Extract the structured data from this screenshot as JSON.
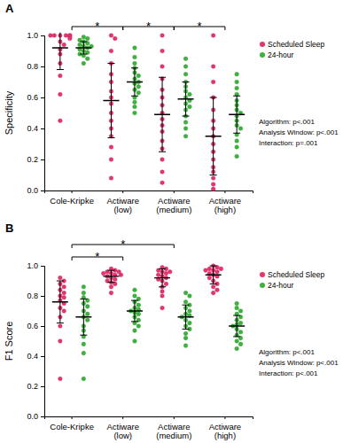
{
  "chart_data": [
    {
      "type": "scatter",
      "title": "A",
      "y_label": "Specificity",
      "categories": [
        "Cole-Kripke",
        "Actiware (low)",
        "Actiware (medium)",
        "Actiware (high)"
      ],
      "ylim": [
        0,
        1
      ],
      "yticks": [
        {
          "value": 0,
          "label": "0.0"
        },
        {
          "value": 0.2,
          "label": "0.2"
        },
        {
          "value": 0.4,
          "label": "0.4"
        },
        {
          "value": 0.6,
          "label": "0.6"
        },
        {
          "value": 0.8,
          "label": "0.8"
        },
        {
          "value": 1,
          "label": "1.0"
        }
      ],
      "grid": false,
      "legend": "right",
      "series": [
        {
          "name": "Scheduled Sleep",
          "color": "#e8336e",
          "marker": "circle",
          "values": [
            [
              1,
              1,
              1,
              1,
              1,
              1,
              0.99,
              0.98,
              0.96,
              0.94,
              0.91,
              0.88,
              0.82,
              0.74,
              0.62,
              0.45
            ],
            [
              1,
              0.98,
              0.9,
              0.82,
              0.75,
              0.7,
              0.64,
              0.6,
              0.56,
              0.5,
              0.45,
              0.4,
              0.35,
              0.28,
              0.2,
              0.08
            ],
            [
              1,
              0.9,
              0.8,
              0.72,
              0.65,
              0.6,
              0.55,
              0.5,
              0.46,
              0.42,
              0.38,
              0.32,
              0.27,
              0.2,
              0.12,
              0.05
            ],
            [
              1,
              0.8,
              0.7,
              0.6,
              0.52,
              0.45,
              0.4,
              0.35,
              0.3,
              0.25,
              0.2,
              0.15,
              0.12,
              0.08,
              0.04,
              0.01
            ]
          ],
          "mean": [
            0.92,
            0.58,
            0.49,
            0.35
          ],
          "sd": [
            0.14,
            0.24,
            0.24,
            0.25
          ]
        },
        {
          "name": "24-hour",
          "color": "#3cb33c",
          "marker": "circle",
          "values": [
            [
              0.99,
              0.98,
              0.97,
              0.96,
              0.95,
              0.94,
              0.93,
              0.93,
              0.92,
              0.91,
              0.9,
              0.89,
              0.88,
              0.87,
              0.85,
              0.82
            ],
            [
              0.92,
              0.86,
              0.82,
              0.79,
              0.76,
              0.74,
              0.72,
              0.7,
              0.69,
              0.67,
              0.65,
              0.63,
              0.6,
              0.57,
              0.54,
              0.5
            ],
            [
              0.85,
              0.8,
              0.75,
              0.7,
              0.67,
              0.64,
              0.62,
              0.6,
              0.58,
              0.56,
              0.54,
              0.52,
              0.48,
              0.44,
              0.4,
              0.35
            ],
            [
              0.75,
              0.7,
              0.66,
              0.62,
              0.58,
              0.55,
              0.52,
              0.5,
              0.48,
              0.45,
              0.42,
              0.4,
              0.36,
              0.32,
              0.28,
              0.22
            ]
          ],
          "mean": [
            0.92,
            0.7,
            0.59,
            0.49
          ],
          "sd": [
            0.04,
            0.09,
            0.11,
            0.12
          ]
        }
      ],
      "brackets": [
        {
          "from": 0,
          "to": 1,
          "label": "*"
        },
        {
          "from": 1,
          "to": 2,
          "label": "*"
        },
        {
          "from": 2,
          "to": 3,
          "label": "*"
        }
      ],
      "annotations": [
        "Algorithm: p<.001",
        "Analysis Window: p<.001",
        "Interaction: p=.001"
      ]
    },
    {
      "type": "scatter",
      "title": "B",
      "y_label": "F1 Score",
      "categories": [
        "Cole-Kripke",
        "Actiware (low)",
        "Actiware (medium)",
        "Actiware (high)"
      ],
      "ylim": [
        0,
        1
      ],
      "yticks": [
        {
          "value": 0,
          "label": "0.0"
        },
        {
          "value": 0.2,
          "label": "0.2"
        },
        {
          "value": 0.4,
          "label": "0.4"
        },
        {
          "value": 0.6,
          "label": "0.6"
        },
        {
          "value": 0.8,
          "label": "0.8"
        },
        {
          "value": 1,
          "label": "1.0"
        }
      ],
      "grid": false,
      "legend": "right",
      "series": [
        {
          "name": "Scheduled Sleep",
          "color": "#e8336e",
          "marker": "circle",
          "values": [
            [
              0.92,
              0.9,
              0.88,
              0.86,
              0.84,
              0.82,
              0.8,
              0.79,
              0.77,
              0.75,
              0.72,
              0.7,
              0.66,
              0.6,
              0.5,
              0.25
            ],
            [
              0.98,
              0.97,
              0.96,
              0.96,
              0.95,
              0.95,
              0.94,
              0.94,
              0.93,
              0.92,
              0.91,
              0.9,
              0.89,
              0.88,
              0.86,
              0.82
            ],
            [
              0.99,
              0.98,
              0.97,
              0.96,
              0.96,
              0.95,
              0.94,
              0.93,
              0.92,
              0.91,
              0.9,
              0.88,
              0.86,
              0.83,
              0.8,
              0.72
            ],
            [
              1,
              0.99,
              0.98,
              0.98,
              0.97,
              0.97,
              0.96,
              0.95,
              0.94,
              0.93,
              0.92,
              0.9,
              0.88,
              0.86,
              0.84,
              0.82
            ]
          ],
          "mean": [
            0.76,
            0.93,
            0.92,
            0.94
          ],
          "sd": [
            0.14,
            0.04,
            0.06,
            0.06
          ]
        },
        {
          "name": "24-hour",
          "color": "#3cb33c",
          "marker": "circle",
          "values": [
            [
              0.86,
              0.82,
              0.79,
              0.77,
              0.75,
              0.73,
              0.7,
              0.68,
              0.66,
              0.64,
              0.6,
              0.57,
              0.53,
              0.48,
              0.42,
              0.25
            ],
            [
              0.84,
              0.8,
              0.78,
              0.76,
              0.74,
              0.72,
              0.71,
              0.7,
              0.69,
              0.68,
              0.66,
              0.64,
              0.62,
              0.6,
              0.57,
              0.5
            ],
            [
              0.82,
              0.8,
              0.76,
              0.74,
              0.72,
              0.7,
              0.68,
              0.67,
              0.66,
              0.64,
              0.62,
              0.6,
              0.58,
              0.55,
              0.52,
              0.47
            ],
            [
              0.75,
              0.72,
              0.7,
              0.68,
              0.66,
              0.64,
              0.62,
              0.61,
              0.6,
              0.58,
              0.56,
              0.54,
              0.52,
              0.5,
              0.48,
              0.45
            ]
          ],
          "mean": [
            0.66,
            0.7,
            0.66,
            0.6
          ],
          "sd": [
            0.12,
            0.07,
            0.08,
            0.07
          ]
        }
      ],
      "brackets": [
        {
          "from": 0,
          "to": 1,
          "label": "*"
        },
        {
          "from": 0,
          "to": 2,
          "label": "*"
        }
      ],
      "annotations": [
        "Algorithm: p<.001",
        "Analysis Window: p<.001",
        "Interaction: p<.001"
      ]
    }
  ]
}
